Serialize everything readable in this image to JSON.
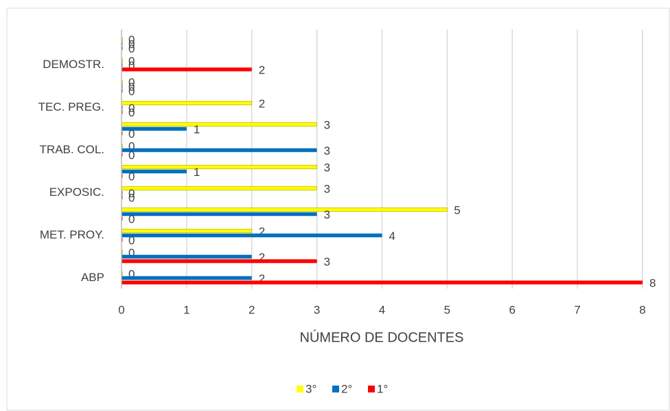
{
  "chart_data": {
    "type": "hbar",
    "x_label": "NÚMERO DE DOCENTES",
    "categories": [
      "ABP",
      null,
      "MET. PROY.",
      null,
      "EXPOSIC.",
      null,
      "TRAB. COL.",
      null,
      "TEC. PREG.",
      null,
      "DEMOSTR.",
      null
    ],
    "series": [
      {
        "name": "3°",
        "color": "#ffff00",
        "values": [
          0,
          0,
          2,
          5,
          3,
          3,
          0,
          3,
          2,
          0,
          0,
          0
        ]
      },
      {
        "name": "2°",
        "color": "#0070c0",
        "values": [
          2,
          2,
          4,
          3,
          0,
          1,
          3,
          1,
          0,
          0,
          0,
          0
        ]
      },
      {
        "name": "1°",
        "color": "#ff0000",
        "values": [
          8,
          3,
          0,
          0,
          0,
          0,
          0,
          0,
          0,
          0,
          2,
          0
        ]
      }
    ],
    "xlim": [
      0,
      8
    ],
    "xticks": [
      0,
      1,
      2,
      3,
      4,
      5,
      6,
      7,
      8
    ],
    "grid": true,
    "legend": "bottom"
  }
}
